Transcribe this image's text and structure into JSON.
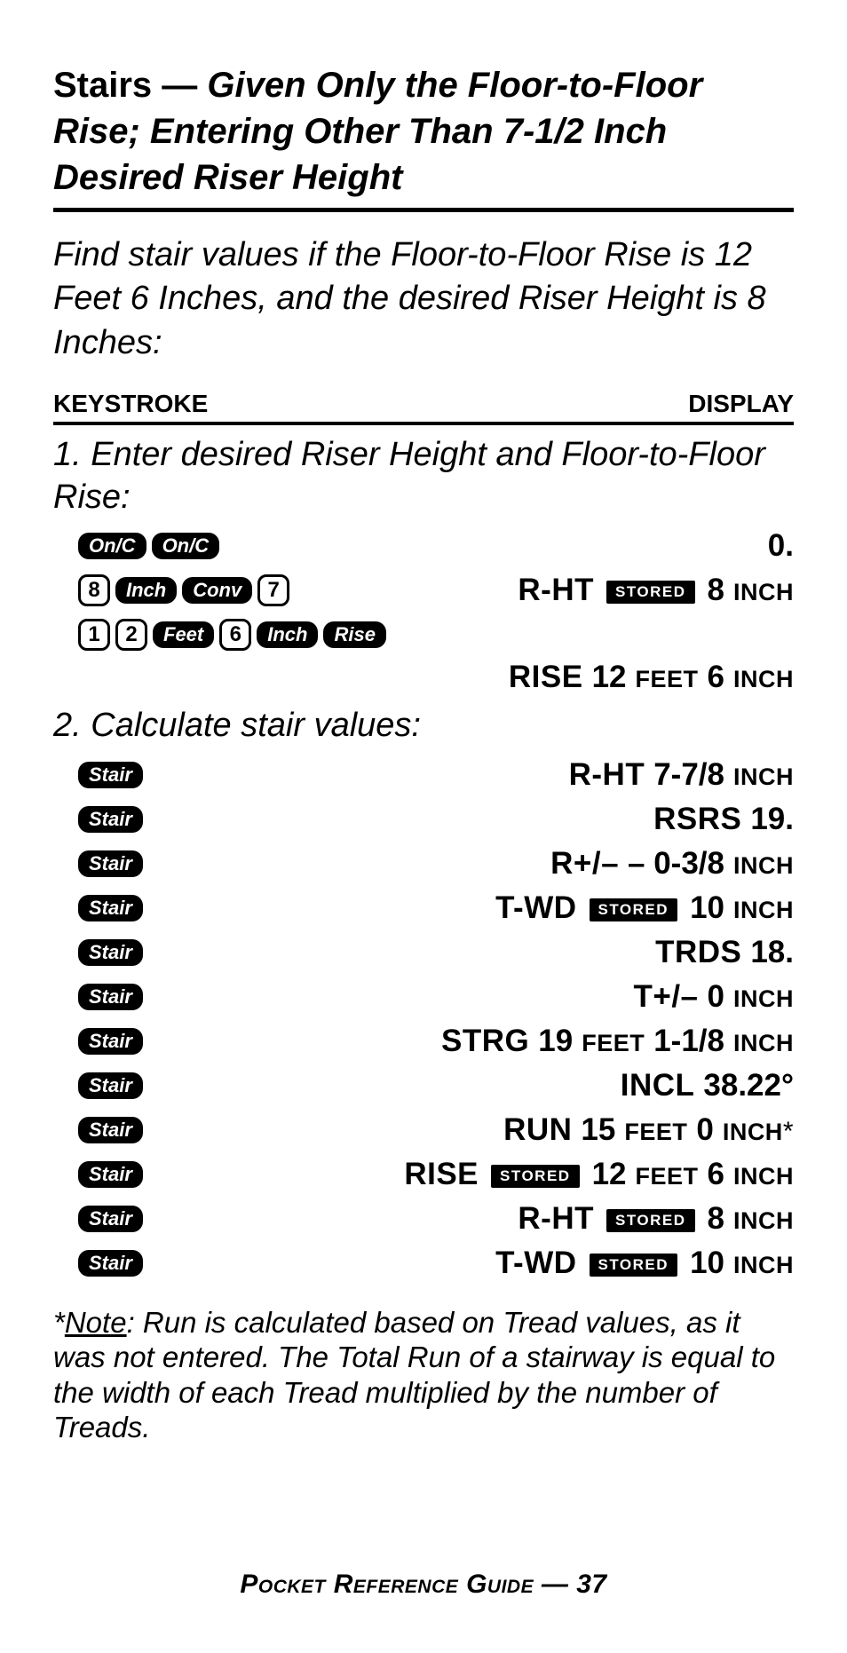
{
  "title_plain": "Stairs — ",
  "title_ital": "Given Only the Floor-to-Floor Rise; Entering Other Than 7-1/2 Inch Desired Riser Height",
  "intro": "Find stair values if the Floor-to-Floor Rise is 12 Feet 6 Inches, and the desired Riser Height is 8 Inches:",
  "hdr_keystroke": "KEYSTROKE",
  "hdr_display": "DISPLAY",
  "step1": "1. Enter desired Riser Height and Floor-to-Floor Rise:",
  "step2": "2. Calculate stair values:",
  "keys": {
    "onc": "On/C",
    "inch": "Inch",
    "conv": "Conv",
    "feet": "Feet",
    "rise": "Rise",
    "stair": "Stair",
    "d8": "8",
    "d7": "7",
    "d1": "1",
    "d2": "2",
    "d6": "6"
  },
  "stored": "STORED",
  "rows": {
    "r1": {
      "val": "0."
    },
    "r2": {
      "lbl": "R-HT",
      "val": "8",
      "unit": "INCH"
    },
    "r3": {
      "lbl": "RISE",
      "val1": "12",
      "unit1": "FEET",
      "val2": "6",
      "unit2": "INCH"
    },
    "s1": {
      "lbl": "R-HT",
      "val": "7-7/8",
      "unit": "INCH"
    },
    "s2": {
      "lbl": "RSRS",
      "val": "19."
    },
    "s3": {
      "lbl": "R+/–",
      "val": "– 0-3/8",
      "unit": "INCH"
    },
    "s4": {
      "lbl": "T-WD",
      "val": "10",
      "unit": "INCH"
    },
    "s5": {
      "lbl": "TRDS",
      "val": "18."
    },
    "s6": {
      "lbl": "T+/–",
      "val": "0",
      "unit": "INCH"
    },
    "s7": {
      "lbl": "STRG",
      "val1": "19",
      "unit1": "FEET",
      "val2": "1-1/8",
      "unit2": "INCH"
    },
    "s8": {
      "lbl": "INCL",
      "val": "38.22°"
    },
    "s9": {
      "lbl": "RUN",
      "val1": "15",
      "unit1": "FEET",
      "val2": "0",
      "unit2": "INCH",
      "star": "*"
    },
    "s10": {
      "lbl": "RISE",
      "val1": "12",
      "unit1": "FEET",
      "val2": "6",
      "unit2": "INCH"
    },
    "s11": {
      "lbl": "R-HT",
      "val": "8",
      "unit": "INCH"
    },
    "s12": {
      "lbl": "T-WD",
      "val": "10",
      "unit": "INCH"
    }
  },
  "footnote_star": "*",
  "footnote_note": "Note",
  "footnote_body": ": Run is calculated based on Tread values, as it was not entered. The Total Run of a stairway is equal to the width of each Tread multiplied by the number of Treads.",
  "footer_text": "Pocket Reference Guide — 37"
}
